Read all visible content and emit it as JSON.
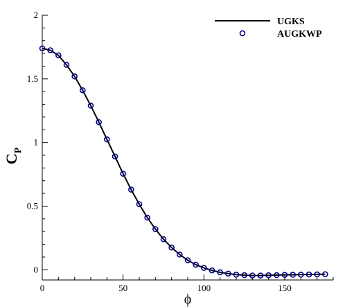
{
  "chart_data": {
    "type": "line",
    "x_axis": {
      "label": "ϕ",
      "range": [
        0,
        180
      ],
      "ticks": [
        0,
        50,
        100,
        150
      ],
      "tick_labels": [
        "0",
        "50",
        "100",
        "150"
      ],
      "minor_step": 10
    },
    "y_axis": {
      "label_main": "C",
      "label_sub": "P",
      "range": [
        -0.08,
        2.0
      ],
      "ticks": [
        0,
        0.5,
        1,
        1.5,
        2
      ],
      "tick_labels": [
        "0",
        "0.5",
        "1",
        "1.5",
        "2"
      ],
      "minor_step": 0.1
    },
    "grid": false,
    "legend_position": "top-right",
    "series": [
      {
        "name": "UGKS",
        "style": "line",
        "color": "#000000",
        "x": [
          0,
          5,
          10,
          15,
          20,
          25,
          30,
          35,
          40,
          45,
          50,
          55,
          60,
          65,
          70,
          75,
          80,
          85,
          90,
          95,
          100,
          105,
          110,
          115,
          120,
          125,
          130,
          135,
          140,
          145,
          150,
          155,
          160,
          165,
          170,
          175
        ],
        "y": [
          1.74,
          1.725,
          1.685,
          1.61,
          1.52,
          1.41,
          1.29,
          1.16,
          1.025,
          0.89,
          0.755,
          0.63,
          0.515,
          0.41,
          0.32,
          0.24,
          0.175,
          0.12,
          0.075,
          0.04,
          0.015,
          -0.005,
          -0.02,
          -0.03,
          -0.038,
          -0.042,
          -0.045,
          -0.045,
          -0.043,
          -0.042,
          -0.04,
          -0.039,
          -0.038,
          -0.037,
          -0.036,
          -0.035
        ]
      },
      {
        "name": "AUGKWP",
        "style": "markers",
        "marker": "open-circle",
        "color": "#00008b",
        "x": [
          0,
          5,
          10,
          15,
          20,
          25,
          30,
          35,
          40,
          45,
          50,
          55,
          60,
          65,
          70,
          75,
          80,
          85,
          90,
          95,
          100,
          105,
          110,
          115,
          120,
          125,
          130,
          135,
          140,
          145,
          150,
          155,
          160,
          165,
          170,
          175
        ],
        "y": [
          1.74,
          1.725,
          1.685,
          1.61,
          1.52,
          1.41,
          1.29,
          1.16,
          1.025,
          0.89,
          0.755,
          0.63,
          0.515,
          0.41,
          0.32,
          0.24,
          0.175,
          0.12,
          0.075,
          0.04,
          0.015,
          -0.005,
          -0.02,
          -0.03,
          -0.038,
          -0.042,
          -0.045,
          -0.045,
          -0.043,
          -0.042,
          -0.04,
          -0.039,
          -0.038,
          -0.037,
          -0.036,
          -0.035
        ]
      }
    ]
  }
}
